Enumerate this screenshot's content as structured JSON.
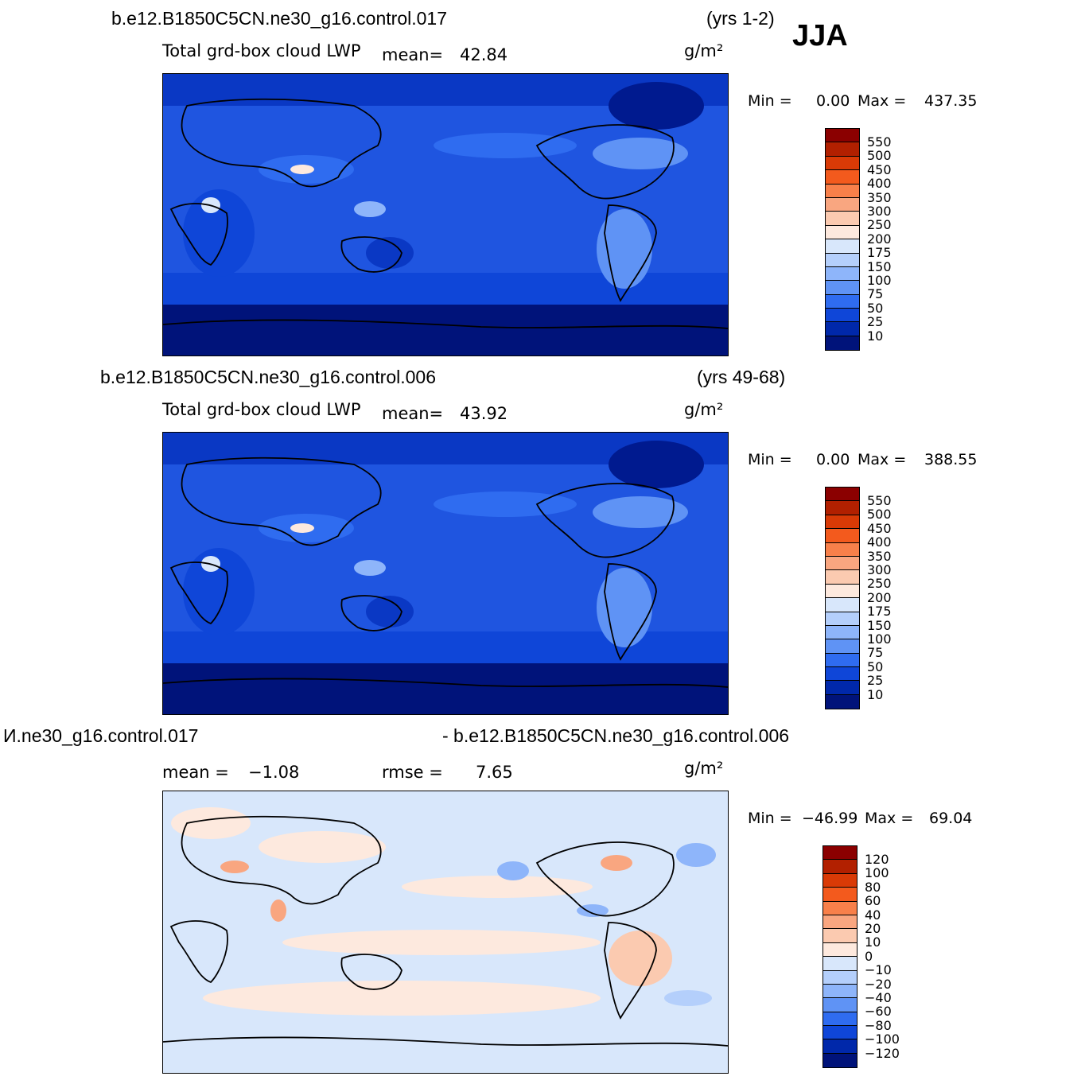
{
  "season": "JJA",
  "units": "g/m²",
  "panels": [
    {
      "case": "b.e12.B1850C5CN.ne30_g16.control.017",
      "years": "(yrs 1-2)",
      "variable": "Total grd-box cloud LWP",
      "mean_label": "mean=",
      "mean_value": "42.84",
      "min_label": "Min =",
      "min_value": "0.00",
      "max_label": "Max =",
      "max_value": "437.35"
    },
    {
      "case": "b.e12.B1850C5CN.ne30_g16.control.006",
      "years": "(yrs 49-68)",
      "variable": "Total grd-box cloud LWP",
      "mean_label": "mean=",
      "mean_value": "43.92",
      "min_label": "Min =",
      "min_value": "0.00",
      "max_label": "Max =",
      "max_value": "388.55"
    }
  ],
  "diff": {
    "left_title": "И.ne30_g16.control.017",
    "right_title": "- b.e12.B1850C5CN.ne30_g16.control.006",
    "mean_label": "mean =",
    "mean_value": "−1.08",
    "rmse_label": "rmse =",
    "rmse_value": "7.65",
    "min_label": "Min =",
    "min_value": "−46.99",
    "max_label": "Max =",
    "max_value": "69.04"
  },
  "colorbar_abs": {
    "levels": [
      "550",
      "500",
      "450",
      "400",
      "350",
      "300",
      "250",
      "200",
      "175",
      "150",
      "100",
      "75",
      "50",
      "25",
      "10"
    ],
    "colors": [
      "#8b0000",
      "#b22000",
      "#d93a06",
      "#f35a1d",
      "#f8804a",
      "#f9a680",
      "#fbcab0",
      "#fde9de",
      "#d8e7fb",
      "#b4cffb",
      "#8eb5fa",
      "#5f93f5",
      "#2f6cf0",
      "#0f46d8",
      "#0028aa",
      "#00137a"
    ]
  },
  "colorbar_diff": {
    "levels": [
      "120",
      "100",
      "80",
      "60",
      "40",
      "20",
      "10",
      "0",
      "−10",
      "−20",
      "−40",
      "−60",
      "−80",
      "−100",
      "−120"
    ],
    "colors": [
      "#8b0000",
      "#b22000",
      "#d93a06",
      "#f35a1d",
      "#f8804a",
      "#f9a680",
      "#fbcab0",
      "#fde9de",
      "#d8e7fb",
      "#b4cffb",
      "#8eb5fa",
      "#5f93f5",
      "#2f6cf0",
      "#0f46d8",
      "#0028aa",
      "#00137a"
    ]
  }
}
